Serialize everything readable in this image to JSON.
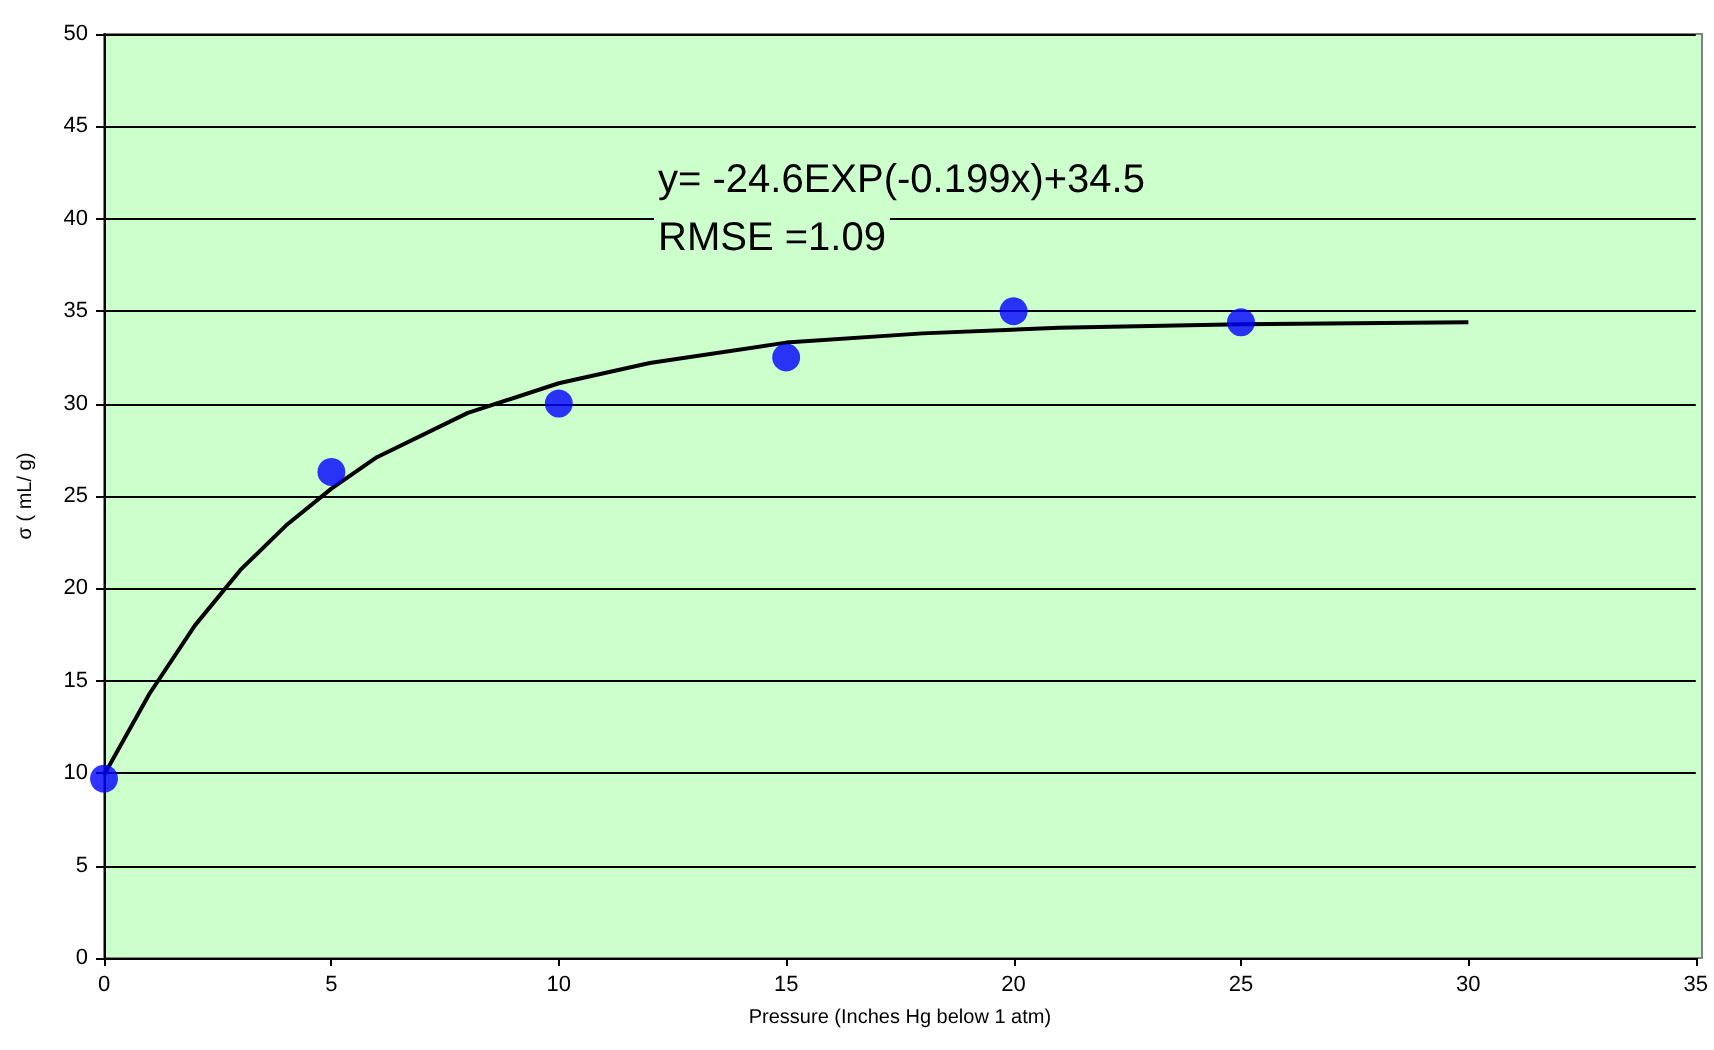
{
  "chart_data": {
    "type": "scatter",
    "xlabel": "Pressure (Inches Hg below 1 atm)",
    "ylabel": "σ ( mL/ g)",
    "xlim": [
      0,
      35
    ],
    "xticks": [
      0,
      5,
      10,
      15,
      20,
      25,
      30,
      35
    ],
    "ylim": [
      0,
      50
    ],
    "yticks": [
      0,
      5,
      10,
      15,
      20,
      25,
      30,
      35,
      40,
      45,
      50
    ],
    "grid": "y",
    "marker": "circle",
    "annotations": [
      "y= -24.6EXP(-0.199x)+34.5",
      "RMSE =1.09"
    ],
    "series": [
      {
        "color": "#0000ff",
        "x": [
          0,
          5,
          10,
          15,
          20,
          25
        ],
        "values": [
          9.7,
          26.3,
          30.0,
          32.5,
          35.0,
          34.4
        ]
      },
      {
        "type": "line",
        "color": "#000000",
        "marker": "none",
        "line_style": "solid",
        "x": [
          0,
          1,
          2,
          3,
          4,
          5,
          6,
          8,
          10,
          12,
          15,
          18,
          21,
          25,
          30
        ],
        "values": [
          9.9,
          14.3,
          18.0,
          21.0,
          23.4,
          25.4,
          27.1,
          29.5,
          31.1,
          32.2,
          33.3,
          33.8,
          34.1,
          34.3,
          34.4
        ]
      }
    ]
  }
}
